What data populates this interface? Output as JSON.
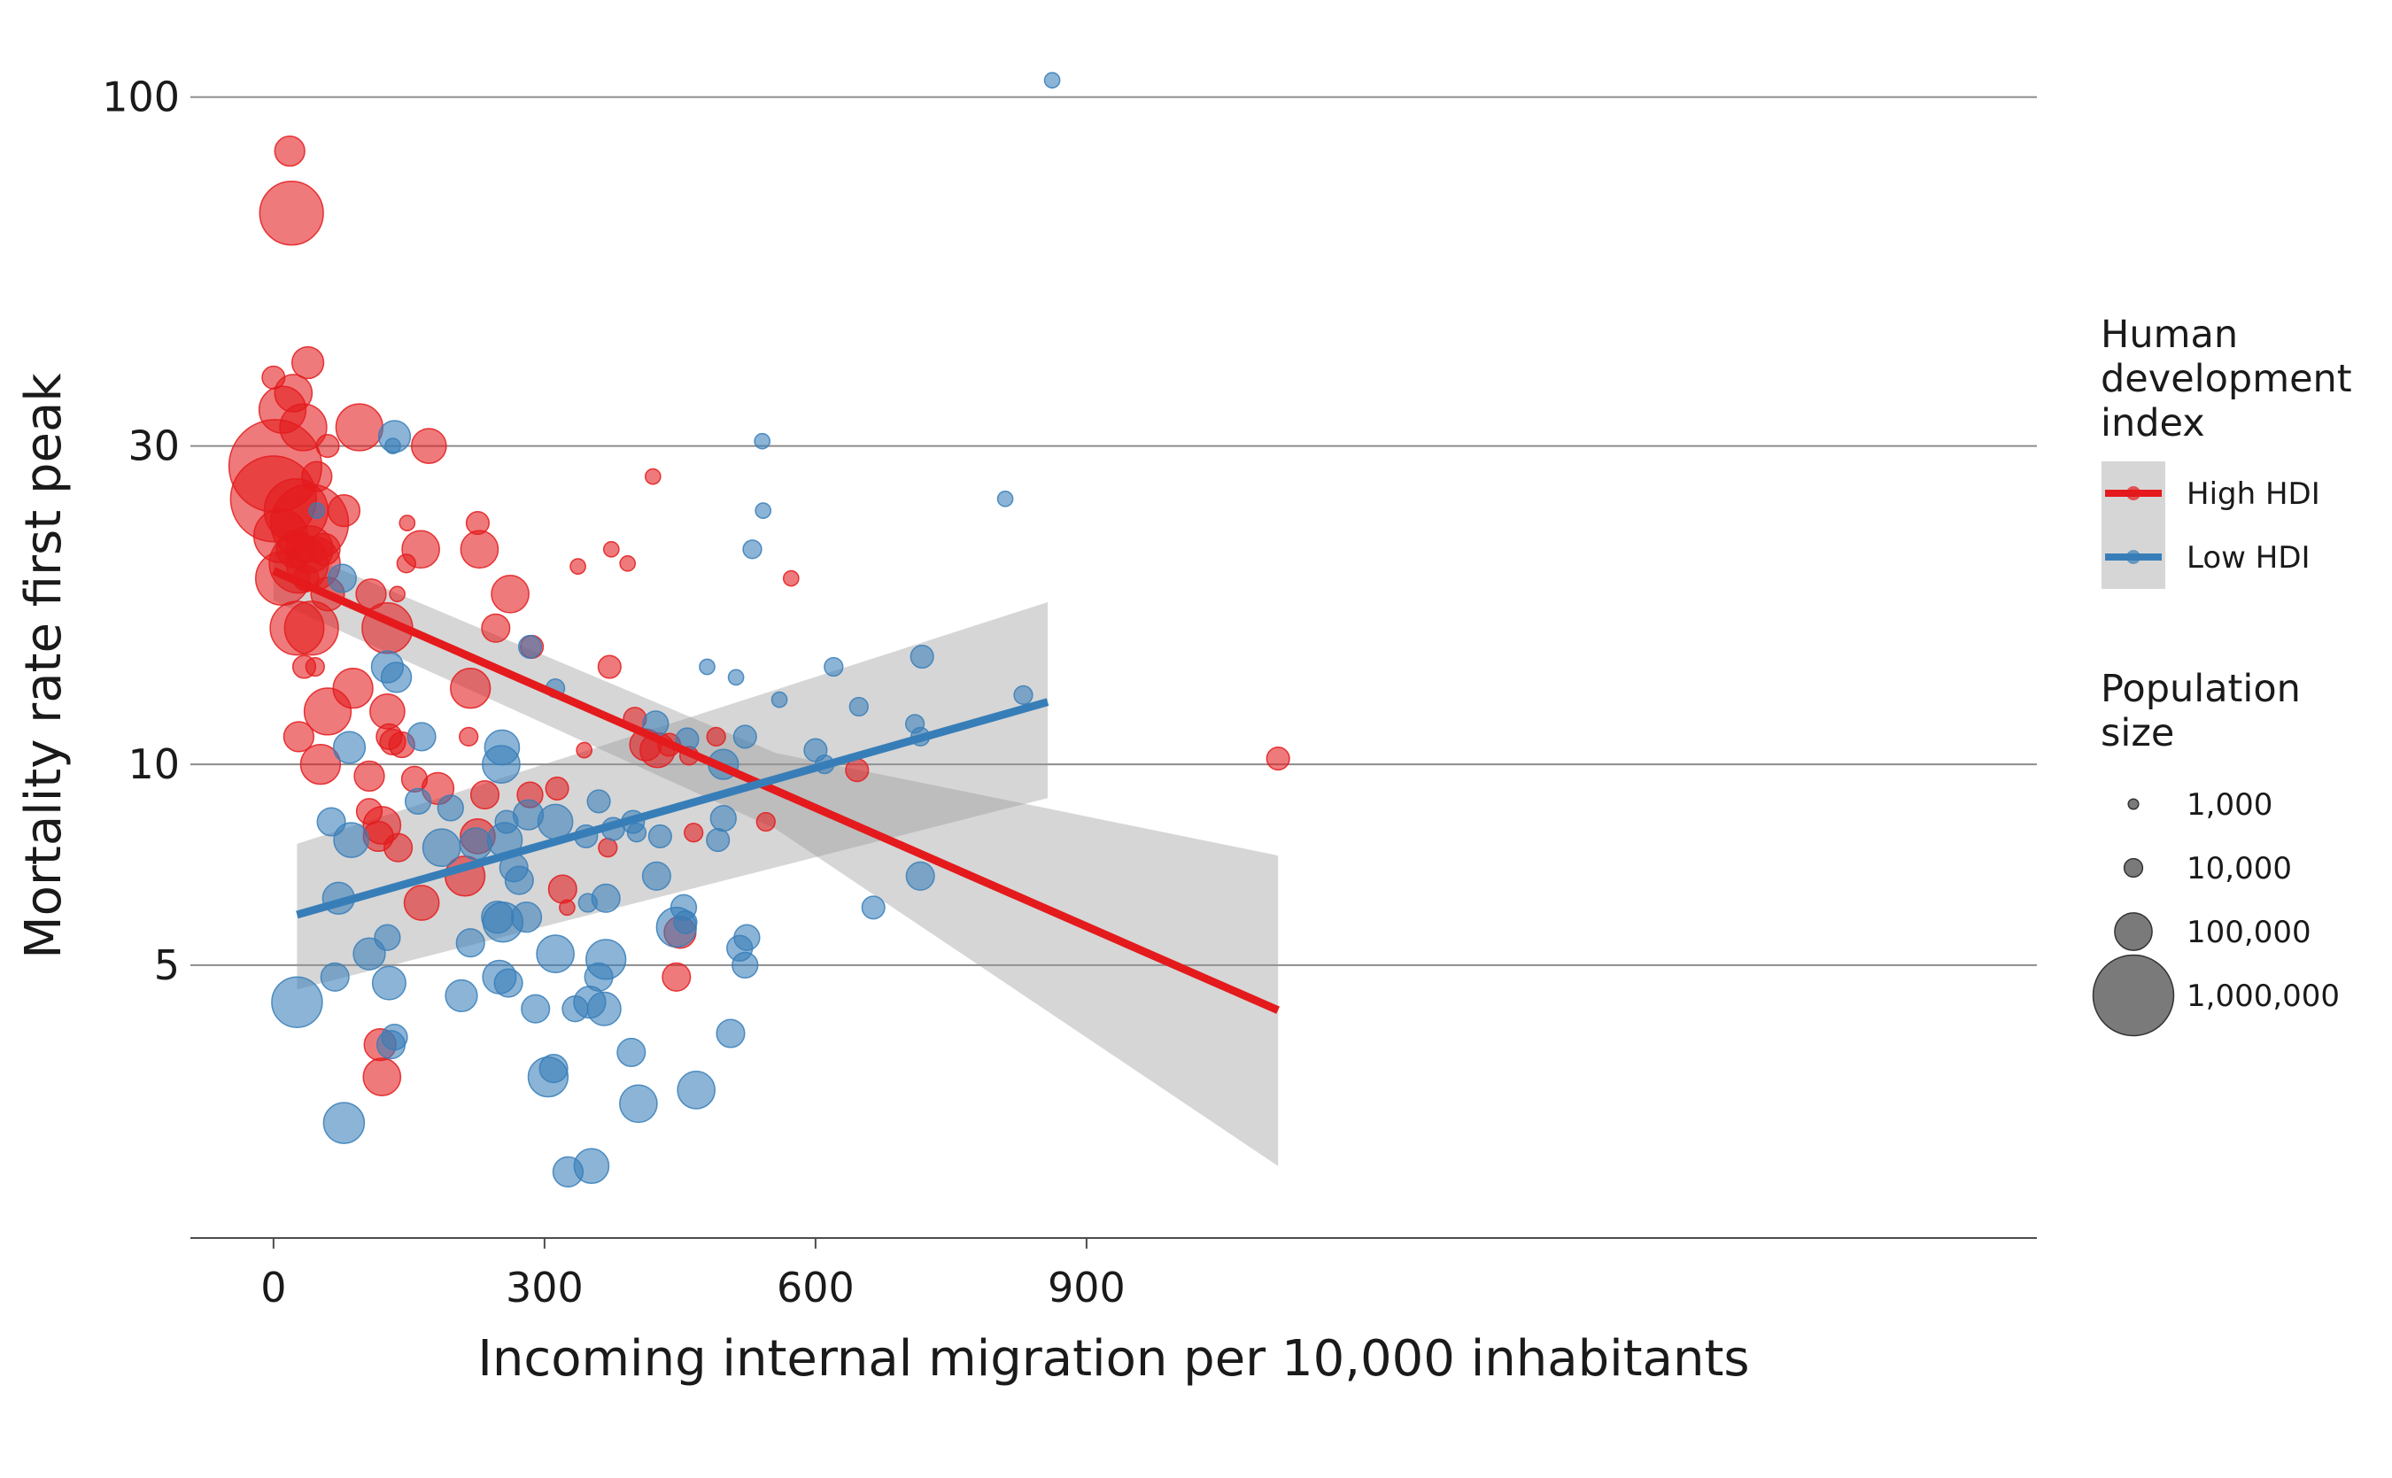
{
  "chart_data": {
    "type": "scatter",
    "title": "",
    "xlabel": "Incoming internal migration per 10,000 inhabitants",
    "ylabel": "Mortality rate first peak",
    "xlim": [
      -92,
      1952
    ],
    "ylim": [
      1.95,
      120
    ],
    "y_scale": "log",
    "x_ticks": [
      0,
      300,
      600,
      900
    ],
    "x_tick_labels": [
      "0",
      "300",
      "600",
      "900"
    ],
    "y_ticks": [
      5,
      10,
      30,
      100
    ],
    "y_tick_labels": [
      "5",
      "10",
      "30",
      "100"
    ],
    "grid": "horizontal",
    "colors": {
      "high": "#e41a1c",
      "low": "#377eb8",
      "band": "#999999"
    },
    "legend": {
      "hdi_title_lines": [
        "Human",
        "development",
        "index"
      ],
      "hdi_entries": [
        {
          "label": "High HDI",
          "series": "high"
        },
        {
          "label": "Low HDI",
          "series": "low"
        }
      ],
      "size_title_lines": [
        "Population",
        "size"
      ],
      "size_entries": [
        {
          "label": "1,000",
          "pop": 1000
        },
        {
          "label": "10,000",
          "pop": 10000
        },
        {
          "label": "100,000",
          "pop": 100000
        },
        {
          "label": "1,000,000",
          "pop": 1000000
        }
      ]
    },
    "fits": [
      {
        "series": "high",
        "x": [
          0,
          1112
        ],
        "y": [
          19.5,
          4.28
        ],
        "band_x": [
          0,
          556,
          1112
        ],
        "band_lo": [
          17.6,
          8.0,
          2.5
        ],
        "band_hi": [
          21.6,
          10.4,
          7.3
        ]
      },
      {
        "series": "low",
        "x": [
          26,
          857
        ],
        "y": [
          5.95,
          12.4
        ],
        "band_x": [
          26,
          857
        ],
        "band_lo": [
          4.6,
          8.9
        ],
        "band_hi": [
          7.6,
          17.5
        ]
      }
    ],
    "series": [
      {
        "name": "High HDI",
        "key": "high",
        "points": [
          [
            18,
            83,
            50000
          ],
          [
            20,
            67,
            500000
          ],
          [
            0,
            38,
            20000
          ],
          [
            10,
            34,
            200000
          ],
          [
            22,
            36,
            100000
          ],
          [
            38,
            40,
            60000
          ],
          [
            33,
            32,
            200000
          ],
          [
            95,
            32,
            200000
          ],
          [
            60,
            30,
            20000
          ],
          [
            172,
            30,
            80000
          ],
          [
            2,
            28,
            1500000
          ],
          [
            0,
            25,
            1200000
          ],
          [
            48,
            27,
            50000
          ],
          [
            25,
            24,
            500000
          ],
          [
            40,
            23,
            900000
          ],
          [
            78,
            24,
            60000
          ],
          [
            8,
            22,
            300000
          ],
          [
            24,
            21,
            100000
          ],
          [
            40,
            21,
            200000
          ],
          [
            56,
            21,
            60000
          ],
          [
            28,
            20,
            400000
          ],
          [
            44,
            20,
            300000
          ],
          [
            163,
            21,
            100000
          ],
          [
            228,
            21,
            100000
          ],
          [
            147,
            20,
            10000
          ],
          [
            148,
            23,
            5000
          ],
          [
            226,
            23,
            20000
          ],
          [
            10,
            19,
            300000
          ],
          [
            36,
            19,
            30000
          ],
          [
            60,
            18,
            70000
          ],
          [
            108,
            18,
            50000
          ],
          [
            137,
            18,
            5000
          ],
          [
            262,
            18,
            100000
          ],
          [
            42,
            16,
            300000
          ],
          [
            26,
            16,
            300000
          ],
          [
            126,
            16,
            250000
          ],
          [
            246,
            16,
            40000
          ],
          [
            286,
            15,
            20000
          ],
          [
            46,
            14,
            10000
          ],
          [
            34,
            14,
            20000
          ],
          [
            88,
            13,
            120000
          ],
          [
            218,
            13,
            120000
          ],
          [
            60,
            12,
            200000
          ],
          [
            126,
            12,
            80000
          ],
          [
            28,
            11,
            50000
          ],
          [
            128,
            11,
            30000
          ],
          [
            132,
            10.8,
            30000
          ],
          [
            142,
            10.7,
            30000
          ],
          [
            216,
            11,
            10000
          ],
          [
            52,
            10,
            120000
          ],
          [
            106,
            9.6,
            50000
          ],
          [
            156,
            9.5,
            30000
          ],
          [
            182,
            9.2,
            60000
          ],
          [
            234,
            9,
            40000
          ],
          [
            284,
            9,
            30000
          ],
          [
            314,
            9.2,
            20000
          ],
          [
            106,
            8.5,
            30000
          ],
          [
            120,
            8.1,
            100000
          ],
          [
            116,
            7.8,
            50000
          ],
          [
            226,
            7.8,
            80000
          ],
          [
            138,
            7.5,
            40000
          ],
          [
            212,
            6.8,
            120000
          ],
          [
            164,
            6.2,
            80000
          ],
          [
            320,
            6.5,
            40000
          ],
          [
            450,
            5.6,
            60000
          ],
          [
            446,
            4.8,
            40000
          ],
          [
            118,
            3.8,
            60000
          ],
          [
            120,
            3.4,
            100000
          ],
          [
            370,
            7.5,
            10000
          ],
          [
            465,
            7.9,
            10000
          ],
          [
            545,
            8.2,
            10000
          ],
          [
            325,
            6.1,
            5000
          ],
          [
            420,
            27,
            5000
          ],
          [
            337,
            19.8,
            5000
          ],
          [
            374,
            21,
            5000
          ],
          [
            392,
            20,
            5000
          ],
          [
            372,
            14,
            20000
          ],
          [
            344,
            10.5,
            5000
          ],
          [
            412,
            10.7,
            60000
          ],
          [
            438,
            10.7,
            20000
          ],
          [
            425,
            10.5,
            80000
          ],
          [
            400,
            11.7,
            20000
          ],
          [
            460,
            10.3,
            10000
          ],
          [
            490,
            11,
            10000
          ],
          [
            646,
            9.8,
            20000
          ],
          [
            573,
            19,
            5000
          ],
          [
            1112,
            10.2,
            20000
          ]
        ]
      },
      {
        "name": "Low HDI",
        "key": "low",
        "points": [
          [
            862,
            106,
            5000
          ],
          [
            541,
            30.5,
            5000
          ],
          [
            132,
            30,
            5000
          ],
          [
            134,
            31,
            60000
          ],
          [
            810,
            25,
            5000
          ],
          [
            542,
            24,
            5000
          ],
          [
            530,
            21,
            10000
          ],
          [
            48,
            24,
            5000
          ],
          [
            76,
            19,
            40000
          ],
          [
            284,
            15,
            20000
          ],
          [
            126,
            14,
            60000
          ],
          [
            136,
            13.5,
            50000
          ],
          [
            312,
            13,
            10000
          ],
          [
            480,
            14,
            5000
          ],
          [
            512,
            13.5,
            5000
          ],
          [
            560,
            12.5,
            5000
          ],
          [
            620,
            14,
            10000
          ],
          [
            648,
            12.2,
            10000
          ],
          [
            718,
            14.5,
            20000
          ],
          [
            830,
            12.7,
            10000
          ],
          [
            423,
            11.5,
            30000
          ],
          [
            458,
            10.9,
            20000
          ],
          [
            522,
            11,
            20000
          ],
          [
            710,
            11.5,
            10000
          ],
          [
            716,
            11,
            10000
          ],
          [
            164,
            11,
            40000
          ],
          [
            84,
            10.6,
            60000
          ],
          [
            253,
            10.6,
            80000
          ],
          [
            252,
            10,
            100000
          ],
          [
            498,
            10,
            50000
          ],
          [
            600,
            10.5,
            20000
          ],
          [
            610,
            10,
            10000
          ],
          [
            160,
            8.8,
            30000
          ],
          [
            196,
            8.6,
            30000
          ],
          [
            360,
            8.8,
            20000
          ],
          [
            64,
            8.2,
            40000
          ],
          [
            258,
            8.2,
            20000
          ],
          [
            282,
            8.4,
            50000
          ],
          [
            312,
            8.2,
            80000
          ],
          [
            398,
            8.2,
            20000
          ],
          [
            498,
            8.3,
            30000
          ],
          [
            428,
            7.8,
            20000
          ],
          [
            376,
            8,
            20000
          ],
          [
            86,
            7.7,
            80000
          ],
          [
            186,
            7.5,
            100000
          ],
          [
            224,
            7.6,
            60000
          ],
          [
            256,
            7.7,
            80000
          ],
          [
            346,
            7.8,
            20000
          ],
          [
            402,
            7.9,
            10000
          ],
          [
            492,
            7.7,
            20000
          ],
          [
            266,
            7,
            40000
          ],
          [
            272,
            6.7,
            40000
          ],
          [
            424,
            6.8,
            40000
          ],
          [
            716,
            6.8,
            40000
          ],
          [
            72,
            6.3,
            60000
          ],
          [
            248,
            5.9,
            60000
          ],
          [
            254,
            5.8,
            120000
          ],
          [
            280,
            5.9,
            50000
          ],
          [
            348,
            6.2,
            10000
          ],
          [
            368,
            6.3,
            40000
          ],
          [
            454,
            6.1,
            30000
          ],
          [
            456,
            5.8,
            20000
          ],
          [
            446,
            5.7,
            120000
          ],
          [
            524,
            5.5,
            30000
          ],
          [
            664,
            6.1,
            20000
          ],
          [
            126,
            5.5,
            30000
          ],
          [
            218,
            5.4,
            40000
          ],
          [
            106,
            5.2,
            60000
          ],
          [
            312,
            5.2,
            100000
          ],
          [
            368,
            5.1,
            120000
          ],
          [
            516,
            5.3,
            30000
          ],
          [
            522,
            5,
            30000
          ],
          [
            68,
            4.8,
            40000
          ],
          [
            128,
            4.7,
            70000
          ],
          [
            250,
            4.8,
            70000
          ],
          [
            260,
            4.7,
            40000
          ],
          [
            360,
            4.8,
            40000
          ],
          [
            26,
            4.4,
            250000
          ],
          [
            208,
            4.5,
            60000
          ],
          [
            290,
            4.3,
            40000
          ],
          [
            334,
            4.3,
            30000
          ],
          [
            350,
            4.4,
            60000
          ],
          [
            366,
            4.3,
            70000
          ],
          [
            134,
            3.9,
            30000
          ],
          [
            130,
            3.8,
            40000
          ],
          [
            310,
            3.5,
            40000
          ],
          [
            506,
            3.95,
            40000
          ],
          [
            396,
            3.7,
            40000
          ],
          [
            304,
            3.4,
            120000
          ],
          [
            468,
            3.25,
            100000
          ],
          [
            404,
            3.1,
            100000
          ],
          [
            78,
            2.9,
            130000
          ],
          [
            352,
            2.5,
            80000
          ],
          [
            326,
            2.45,
            50000
          ]
        ]
      }
    ]
  }
}
